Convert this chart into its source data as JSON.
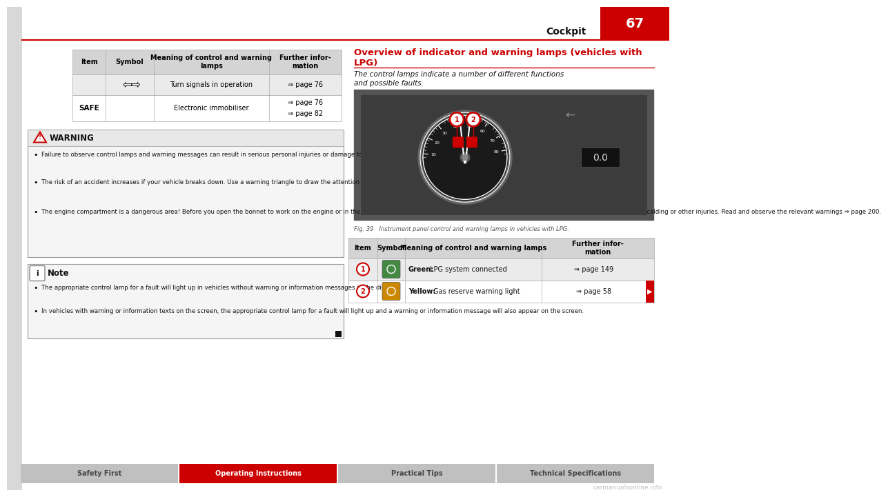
{
  "page_bg": "#ffffff",
  "header_line_color": "#cc0000",
  "header_text": "Cockpit",
  "page_number": "67",
  "page_number_bg": "#cc0000",
  "page_number_color": "#ffffff",
  "table_header_bg": "#d4d4d4",
  "table_row_bg1": "#ebebeb",
  "table_row_bg2": "#ffffff",
  "warning_box_border": "#999999",
  "warning_box_bg": "#f5f5f5",
  "warning_header_bg": "#e8e8e8",
  "warning_title": "WARNING",
  "warning_icon_color": "#cc0000",
  "warning_bullets": [
    "Failure to observe control lamps and warning messages can result in serious personal injuries or damage to your vehicle.",
    "The risk of an accident increases if your vehicle breaks down. Use a warning triangle to draw the attention of other road users in order to prevent danger to third parties.",
    "The engine compartment is a dangerous area! Before you open the bonnet to work on the engine or in the engine compartment, you must switch the engine off and allow it to cool to reduce the risk of scalding or other injuries. Read and observe the relevant warnings ⇒ page 200."
  ],
  "note_box_bg": "#f5f5f5",
  "note_box_border": "#999999",
  "note_title": "Note",
  "note_bullets": [
    "The appropriate control lamp for a fault will light up in vehicles without warning or information messages in the display.",
    "In vehicles with warning or information texts on the screen, the appropriate control lamp for a fault will light up and a warning or information message will also appear on the screen."
  ],
  "right_section_title_line1": "Overview of indicator and warning lamps (vehicles with",
  "right_section_title_line2": "LPG)",
  "right_section_title_color": "#cc0000",
  "right_section_italic": "The control lamps indicate a number of different functions\nand possible faults.",
  "fig_caption": "Fig. 39   Instrument panel control and warning lamps in vehicles with LPG.",
  "right_table_rows": [
    [
      "1",
      "Green:",
      "LPG system connected",
      "⇒ page 149"
    ],
    [
      "2",
      "Yellow:",
      "Gas reserve warning light",
      "⇒ page 58"
    ]
  ],
  "footer_sections": [
    "Safety First",
    "Operating Instructions",
    "Practical Tips",
    "Technical Specifications"
  ],
  "footer_active": "Operating Instructions",
  "footer_active_bg": "#cc0000",
  "footer_active_color": "#ffffff",
  "footer_inactive_bg": "#c0c0c0",
  "footer_inactive_color": "#444444",
  "corner_bg": "#d8d8d8",
  "left_strip_bg": "#d8d8d8",
  "divider_color": "#cc0000",
  "dash_image_bg": "#3c3c3c",
  "dash_outer_bg": "#555555"
}
